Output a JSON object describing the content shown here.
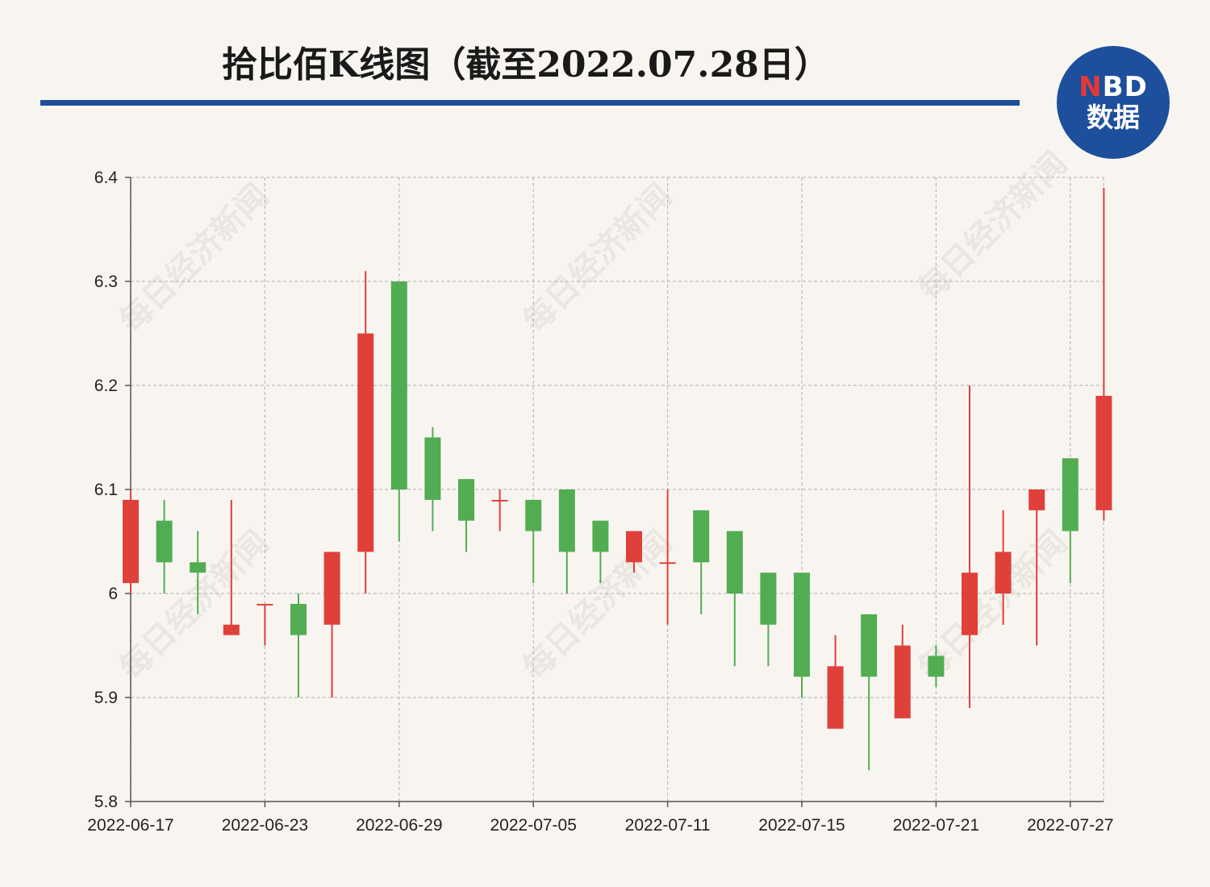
{
  "header": {
    "title": "拾比佰K线图（截至2022.07.28日）",
    "logo_line1_accent": "N",
    "logo_line1_rest": "BD",
    "logo_line2": "数据",
    "watermark": "每日经济新闻"
  },
  "colors": {
    "up": "#e0403a",
    "down": "#52ad52",
    "title_rule": "#1f4e9a",
    "background": "#f8f5f1",
    "logo": "#1d4f9c"
  },
  "chart_data": {
    "type": "candlestick",
    "ylim": [
      5.8,
      6.4
    ],
    "yticks": [
      5.8,
      5.9,
      6,
      6.1,
      6.2,
      6.3,
      6.4
    ],
    "ytick_labels": [
      "5.8",
      "5.9",
      "6",
      "6.1",
      "6.2",
      "6.3",
      "6.4"
    ],
    "xtick_labels": [
      "2022-06-17",
      "2022-06-23",
      "2022-06-29",
      "2022-07-05",
      "2022-07-11",
      "2022-07-15",
      "2022-07-21",
      "2022-07-27"
    ],
    "xtick_indices": [
      0,
      4,
      8,
      12,
      16,
      20,
      24,
      28
    ],
    "grid": true,
    "candles": [
      {
        "date": "2022-06-17",
        "open": 6.01,
        "close": 6.09,
        "high": 6.1,
        "low": 6.0
      },
      {
        "date": "2022-06-20",
        "open": 6.07,
        "close": 6.03,
        "high": 6.09,
        "low": 6.0
      },
      {
        "date": "2022-06-21",
        "open": 6.03,
        "close": 6.02,
        "high": 6.06,
        "low": 5.98
      },
      {
        "date": "2022-06-22",
        "open": 5.96,
        "close": 5.97,
        "high": 6.09,
        "low": 5.96
      },
      {
        "date": "2022-06-23",
        "open": 5.99,
        "close": 5.99,
        "high": 5.99,
        "low": 5.95
      },
      {
        "date": "2022-06-24",
        "open": 5.99,
        "close": 5.96,
        "high": 6.0,
        "low": 5.9
      },
      {
        "date": "2022-06-27",
        "open": 5.97,
        "close": 6.04,
        "high": 6.04,
        "low": 5.9
      },
      {
        "date": "2022-06-28",
        "open": 6.04,
        "close": 6.25,
        "high": 6.31,
        "low": 6.0
      },
      {
        "date": "2022-06-29",
        "open": 6.3,
        "close": 6.1,
        "high": 6.3,
        "low": 6.05
      },
      {
        "date": "2022-06-30",
        "open": 6.15,
        "close": 6.09,
        "high": 6.16,
        "low": 6.06
      },
      {
        "date": "2022-07-01",
        "open": 6.11,
        "close": 6.07,
        "high": 6.11,
        "low": 6.04
      },
      {
        "date": "2022-07-04",
        "open": 6.09,
        "close": 6.09,
        "high": 6.1,
        "low": 6.06
      },
      {
        "date": "2022-07-05",
        "open": 6.09,
        "close": 6.06,
        "high": 6.09,
        "low": 6.01
      },
      {
        "date": "2022-07-06",
        "open": 6.1,
        "close": 6.04,
        "high": 6.1,
        "low": 6.0
      },
      {
        "date": "2022-07-07",
        "open": 6.07,
        "close": 6.04,
        "high": 6.07,
        "low": 6.01
      },
      {
        "date": "2022-07-08",
        "open": 6.03,
        "close": 6.06,
        "high": 6.06,
        "low": 6.02
      },
      {
        "date": "2022-07-11",
        "open": 6.03,
        "close": 6.03,
        "high": 6.1,
        "low": 5.97
      },
      {
        "date": "2022-07-12",
        "open": 6.08,
        "close": 6.03,
        "high": 6.08,
        "low": 5.98
      },
      {
        "date": "2022-07-13",
        "open": 6.06,
        "close": 6.0,
        "high": 6.06,
        "low": 5.93
      },
      {
        "date": "2022-07-14",
        "open": 6.02,
        "close": 5.97,
        "high": 6.02,
        "low": 5.93
      },
      {
        "date": "2022-07-15",
        "open": 6.02,
        "close": 5.92,
        "high": 6.02,
        "low": 5.9
      },
      {
        "date": "2022-07-18",
        "open": 5.87,
        "close": 5.93,
        "high": 5.96,
        "low": 5.87
      },
      {
        "date": "2022-07-19",
        "open": 5.98,
        "close": 5.92,
        "high": 5.98,
        "low": 5.83
      },
      {
        "date": "2022-07-20",
        "open": 5.88,
        "close": 5.95,
        "high": 5.97,
        "low": 5.88
      },
      {
        "date": "2022-07-21",
        "open": 5.94,
        "close": 5.92,
        "high": 5.95,
        "low": 5.91
      },
      {
        "date": "2022-07-22",
        "open": 5.96,
        "close": 6.02,
        "high": 6.2,
        "low": 5.89
      },
      {
        "date": "2022-07-25",
        "open": 6.0,
        "close": 6.04,
        "high": 6.08,
        "low": 5.97
      },
      {
        "date": "2022-07-26",
        "open": 6.08,
        "close": 6.1,
        "high": 6.1,
        "low": 5.95
      },
      {
        "date": "2022-07-27",
        "open": 6.13,
        "close": 6.06,
        "high": 6.13,
        "low": 6.01
      },
      {
        "date": "2022-07-28",
        "open": 6.08,
        "close": 6.19,
        "high": 6.39,
        "low": 6.07
      }
    ]
  }
}
